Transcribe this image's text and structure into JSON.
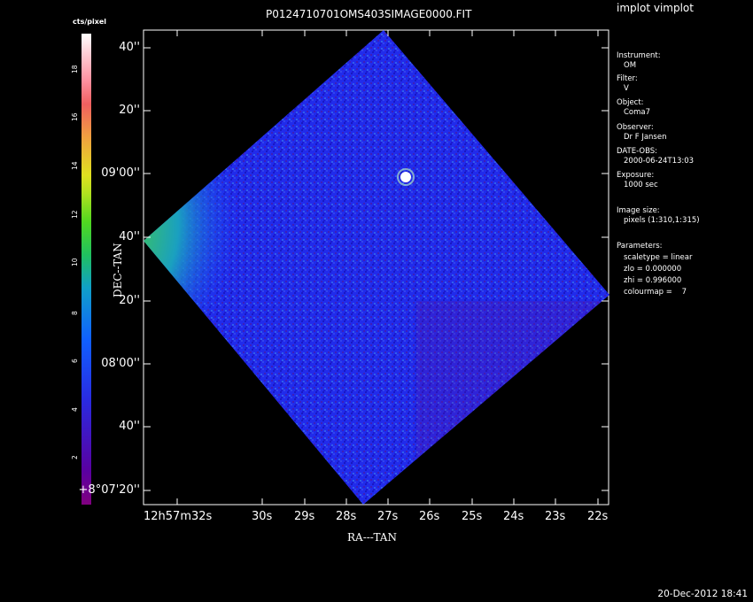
{
  "window": {
    "title": "implot vimplot"
  },
  "plot": {
    "title": "P0124710701OMS403SIMAGE0000.FIT",
    "xlabel": "RA---TAN",
    "ylabel": "DEC--TAN",
    "colorbar_label": "cts/pixel",
    "colorbar_ticks": [
      "2",
      "4",
      "6",
      "8",
      "10",
      "12",
      "14",
      "16",
      "18"
    ],
    "x_ticks": [
      "12h57m32s",
      "30s",
      "29s",
      "28s",
      "27s",
      "26s",
      "25s",
      "24s",
      "23s",
      "22s"
    ],
    "y_ticks": [
      "40''",
      "20''",
      "09'00''",
      "40''",
      "20''",
      "08'00''",
      "40''",
      "+8°07'20''"
    ]
  },
  "info": {
    "instrument_label": "Instrument:",
    "instrument": "OM",
    "filter_label": "Filter:",
    "filter": "V",
    "object_label": "Object:",
    "object": "Coma7",
    "observer_label": "Observer:",
    "observer": "Dr F Jansen",
    "date_label": "DATE-OBS:",
    "date": "2000-06-24T13:03",
    "exposure_label": "Exposure:",
    "exposure": "1000 sec",
    "size_label": "Image size:",
    "size": "pixels (1:310,1:315)",
    "params_label": "Parameters:",
    "scaletype": "scaletype = linear",
    "zlo": "zlo = 0.000000",
    "zhi": "zhi = 0.996000",
    "colourmap": "colourmap =    7"
  },
  "footer": {
    "timestamp": "20-Dec-2012 18:41"
  }
}
